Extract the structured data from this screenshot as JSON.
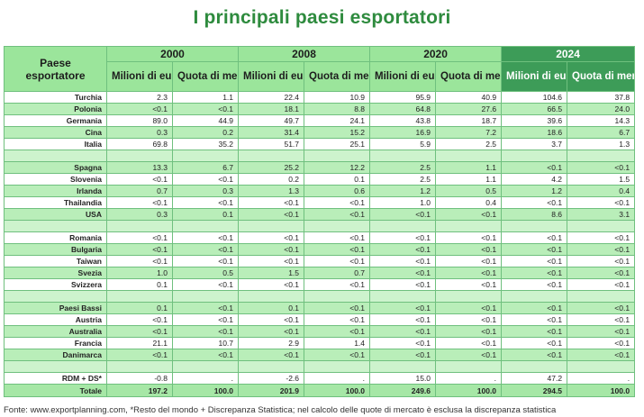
{
  "title": "I principali paesi esportatori",
  "header": {
    "country_col": "Paese esportatore",
    "years": [
      "2000",
      "2008",
      "2020",
      "2024"
    ],
    "col_value": "Milioni di euro",
    "col_share": "Quota di mercato"
  },
  "rows": [
    {
      "name": "Turchia",
      "v": [
        "2.3",
        "1.1",
        "22.4",
        "10.9",
        "95.9",
        "40.9",
        "104.6",
        "37.8"
      ]
    },
    {
      "name": "Polonia",
      "v": [
        "<0.1",
        "<0.1",
        "18.1",
        "8.8",
        "64.8",
        "27.6",
        "66.5",
        "24.0"
      ]
    },
    {
      "name": "Germania",
      "v": [
        "89.0",
        "44.9",
        "49.7",
        "24.1",
        "43.8",
        "18.7",
        "39.6",
        "14.3"
      ]
    },
    {
      "name": "Cina",
      "v": [
        "0.3",
        "0.2",
        "31.4",
        "15.2",
        "16.9",
        "7.2",
        "18.6",
        "6.7"
      ]
    },
    {
      "name": "Italia",
      "v": [
        "69.8",
        "35.2",
        "51.7",
        "25.1",
        "5.9",
        "2.5",
        "3.7",
        "1.3"
      ]
    },
    {
      "name": "Spagna",
      "v": [
        "13.3",
        "6.7",
        "25.2",
        "12.2",
        "2.5",
        "1.1",
        "<0.1",
        "<0.1"
      ]
    },
    {
      "name": "Slovenia",
      "v": [
        "<0.1",
        "<0.1",
        "0.2",
        "0.1",
        "2.5",
        "1.1",
        "4.2",
        "1.5"
      ]
    },
    {
      "name": "Irlanda",
      "v": [
        "0.7",
        "0.3",
        "1.3",
        "0.6",
        "1.2",
        "0.5",
        "1.2",
        "0.4"
      ]
    },
    {
      "name": "Thailandia",
      "v": [
        "<0.1",
        "<0.1",
        "<0.1",
        "<0.1",
        "1.0",
        "0.4",
        "<0.1",
        "<0.1"
      ]
    },
    {
      "name": "USA",
      "v": [
        "0.3",
        "0.1",
        "<0.1",
        "<0.1",
        "<0.1",
        "<0.1",
        "8.6",
        "3.1"
      ]
    },
    {
      "name": "Romania",
      "v": [
        "<0.1",
        "<0.1",
        "<0.1",
        "<0.1",
        "<0.1",
        "<0.1",
        "<0.1",
        "<0.1"
      ]
    },
    {
      "name": "Bulgaria",
      "v": [
        "<0.1",
        "<0.1",
        "<0.1",
        "<0.1",
        "<0.1",
        "<0.1",
        "<0.1",
        "<0.1"
      ]
    },
    {
      "name": "Taiwan",
      "v": [
        "<0.1",
        "<0.1",
        "<0.1",
        "<0.1",
        "<0.1",
        "<0.1",
        "<0.1",
        "<0.1"
      ]
    },
    {
      "name": "Svezia",
      "v": [
        "1.0",
        "0.5",
        "1.5",
        "0.7",
        "<0.1",
        "<0.1",
        "<0.1",
        "<0.1"
      ]
    },
    {
      "name": "Svizzera",
      "v": [
        "0.1",
        "<0.1",
        "<0.1",
        "<0.1",
        "<0.1",
        "<0.1",
        "<0.1",
        "<0.1"
      ]
    },
    {
      "name": "Paesi Bassi",
      "v": [
        "0.1",
        "<0.1",
        "0.1",
        "<0.1",
        "<0.1",
        "<0.1",
        "<0.1",
        "<0.1"
      ]
    },
    {
      "name": "Austria",
      "v": [
        "<0.1",
        "<0.1",
        "<0.1",
        "<0.1",
        "<0.1",
        "<0.1",
        "<0.1",
        "<0.1"
      ]
    },
    {
      "name": "Australia",
      "v": [
        "<0.1",
        "<0.1",
        "<0.1",
        "<0.1",
        "<0.1",
        "<0.1",
        "<0.1",
        "<0.1"
      ]
    },
    {
      "name": "Francia",
      "v": [
        "21.1",
        "10.7",
        "2.9",
        "1.4",
        "<0.1",
        "<0.1",
        "<0.1",
        "<0.1"
      ]
    },
    {
      "name": "Danimarca",
      "v": [
        "<0.1",
        "<0.1",
        "<0.1",
        "<0.1",
        "<0.1",
        "<0.1",
        "<0.1",
        "<0.1"
      ]
    },
    {
      "name": "RDM + DS*",
      "v": [
        "-0.8",
        ".",
        "-2.6",
        ".",
        "15.0",
        ".",
        "47.2",
        "."
      ]
    }
  ],
  "total": {
    "name": "Totale",
    "v": [
      "197.2",
      "100.0",
      "201.9",
      "100.0",
      "249.6",
      "100.0",
      "294.5",
      "100.0"
    ]
  },
  "footer": "Fonte: www.exportplanning.com, *Resto del mondo + Discrepanza Statistica; nel calcolo delle quote di mercato è esclusa la discrepanza statistica"
}
